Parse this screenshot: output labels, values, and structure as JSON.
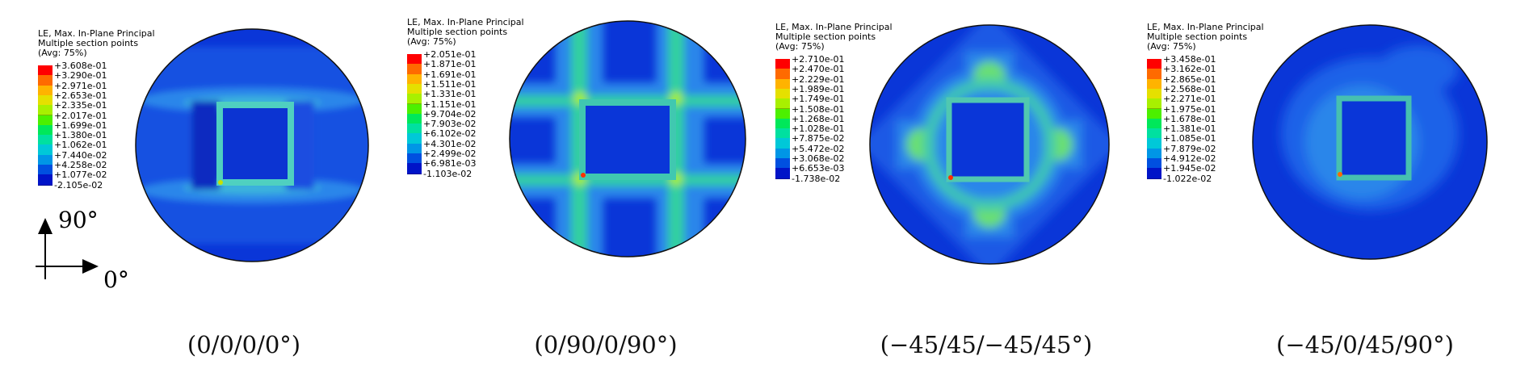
{
  "panels": [
    {
      "legend": {
        "title": "LE, Max. In-Plane Principal",
        "subtitle": "Multiple section points",
        "avg": "(Avg: 75%)",
        "values": [
          "+3.608e-01",
          "+3.290e-01",
          "+2.971e-01",
          "+2.653e-01",
          "+2.335e-01",
          "+2.017e-01",
          "+1.699e-01",
          "+1.380e-01",
          "+1.062e-01",
          "+7.440e-02",
          "+4.258e-02",
          "+1.077e-02",
          "-2.105e-02"
        ]
      },
      "caption": "(0/0/0/0°)"
    },
    {
      "legend": {
        "title": "LE, Max. In-Plane Principal",
        "subtitle": "Multiple section points",
        "avg": "(Avg: 75%)",
        "values": [
          "+2.051e-01",
          "+1.871e-01",
          "+1.691e-01",
          "+1.511e-01",
          "+1.331e-01",
          "+1.151e-01",
          "+9.704e-02",
          "+7.903e-02",
          "+6.102e-02",
          "+4.301e-02",
          "+2.499e-02",
          "+6.981e-03",
          "-1.103e-02"
        ]
      },
      "caption": "(0/90/0/90°)"
    },
    {
      "legend": {
        "title": "LE, Max. In-Plane Principal",
        "subtitle": "Multiple section points",
        "avg": "(Avg: 75%)",
        "values": [
          "+2.710e-01",
          "+2.470e-01",
          "+2.229e-01",
          "+1.989e-01",
          "+1.749e-01",
          "+1.508e-01",
          "+1.268e-01",
          "+1.028e-01",
          "+7.875e-02",
          "+5.472e-02",
          "+3.068e-02",
          "+6.653e-03",
          "-1.738e-02"
        ]
      },
      "caption": "(−45/45/−45/45°)"
    },
    {
      "legend": {
        "title": "LE, Max. In-Plane Principal",
        "subtitle": "Multiple section points",
        "avg": "(Avg: 75%)",
        "values": [
          "+3.458e-01",
          "+3.162e-01",
          "+2.865e-01",
          "+2.568e-01",
          "+2.271e-01",
          "+1.975e-01",
          "+1.678e-01",
          "+1.381e-01",
          "+1.085e-01",
          "+7.879e-02",
          "+4.912e-02",
          "+1.945e-02",
          "-1.022e-02"
        ]
      },
      "caption": "(−45/0/45/90°)"
    }
  ],
  "axes": {
    "vertical": "90°",
    "horizontal": "0°"
  },
  "contour_colors": [
    "#ff0000",
    "#ff6a00",
    "#ffb300",
    "#e5e000",
    "#a8f000",
    "#4cf000",
    "#00e85a",
    "#00e0a0",
    "#00c8d8",
    "#0096e6",
    "#0050e0",
    "#0014c8"
  ]
}
